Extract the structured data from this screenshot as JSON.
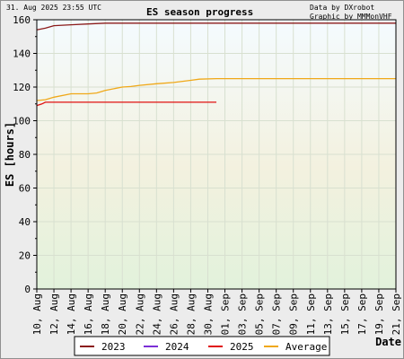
{
  "header": {
    "timestamp": "31. Aug 2025 23:55 UTC",
    "title": "ES season progress",
    "credit_data": "Data by DXrobot",
    "credit_graphic": "Graphic by MMMonVHF"
  },
  "chart_data": {
    "type": "line",
    "title": "ES season progress",
    "ylabel": "ES [hours]",
    "xlabel": "Date",
    "ylim": [
      0,
      160
    ],
    "yticks": [
      0,
      20,
      40,
      60,
      80,
      100,
      120,
      140,
      160
    ],
    "day_start": 10,
    "day_end": 52,
    "x_tick_labels": [
      "10, Aug",
      "12, Aug",
      "14, Aug",
      "16, Aug",
      "18, Aug",
      "20, Aug",
      "22, Aug",
      "24, Aug",
      "26, Aug",
      "28, Aug",
      "30, Aug",
      "01, Sep",
      "03, Sep",
      "05, Sep",
      "07, Sep",
      "09, Sep",
      "11, Sep",
      "13, Sep",
      "15, Sep",
      "17, Sep",
      "19, Sep",
      "21, Sep"
    ],
    "x_tick_days": [
      10,
      12,
      14,
      16,
      18,
      20,
      22,
      24,
      26,
      28,
      30,
      32,
      34,
      36,
      38,
      40,
      42,
      44,
      46,
      48,
      50,
      52
    ],
    "grid": true,
    "legend_position": "bottom",
    "series": [
      {
        "name": "2023",
        "color": "#8b1a1a",
        "points": [
          [
            10,
            154
          ],
          [
            11,
            155
          ],
          [
            12,
            156.5
          ],
          [
            14,
            157
          ],
          [
            16,
            157.5
          ],
          [
            18,
            158
          ],
          [
            20,
            158
          ],
          [
            52,
            158
          ]
        ]
      },
      {
        "name": "2024",
        "color": "#7b2fd6",
        "points": []
      },
      {
        "name": "2025",
        "color": "#e01010",
        "points": [
          [
            10,
            109
          ],
          [
            10.6,
            110
          ],
          [
            11,
            111
          ],
          [
            31,
            111
          ]
        ]
      },
      {
        "name": "Average",
        "color": "#f0a818",
        "points": [
          [
            10,
            112
          ],
          [
            11,
            112.5
          ],
          [
            12,
            114
          ],
          [
            14,
            116
          ],
          [
            16,
            116
          ],
          [
            17,
            116.5
          ],
          [
            18,
            118
          ],
          [
            20,
            120
          ],
          [
            21,
            120.3
          ],
          [
            22,
            121
          ],
          [
            24,
            122
          ],
          [
            26,
            122.7
          ],
          [
            28,
            124
          ],
          [
            29,
            124.7
          ],
          [
            31,
            125
          ],
          [
            52,
            125
          ]
        ]
      }
    ]
  }
}
